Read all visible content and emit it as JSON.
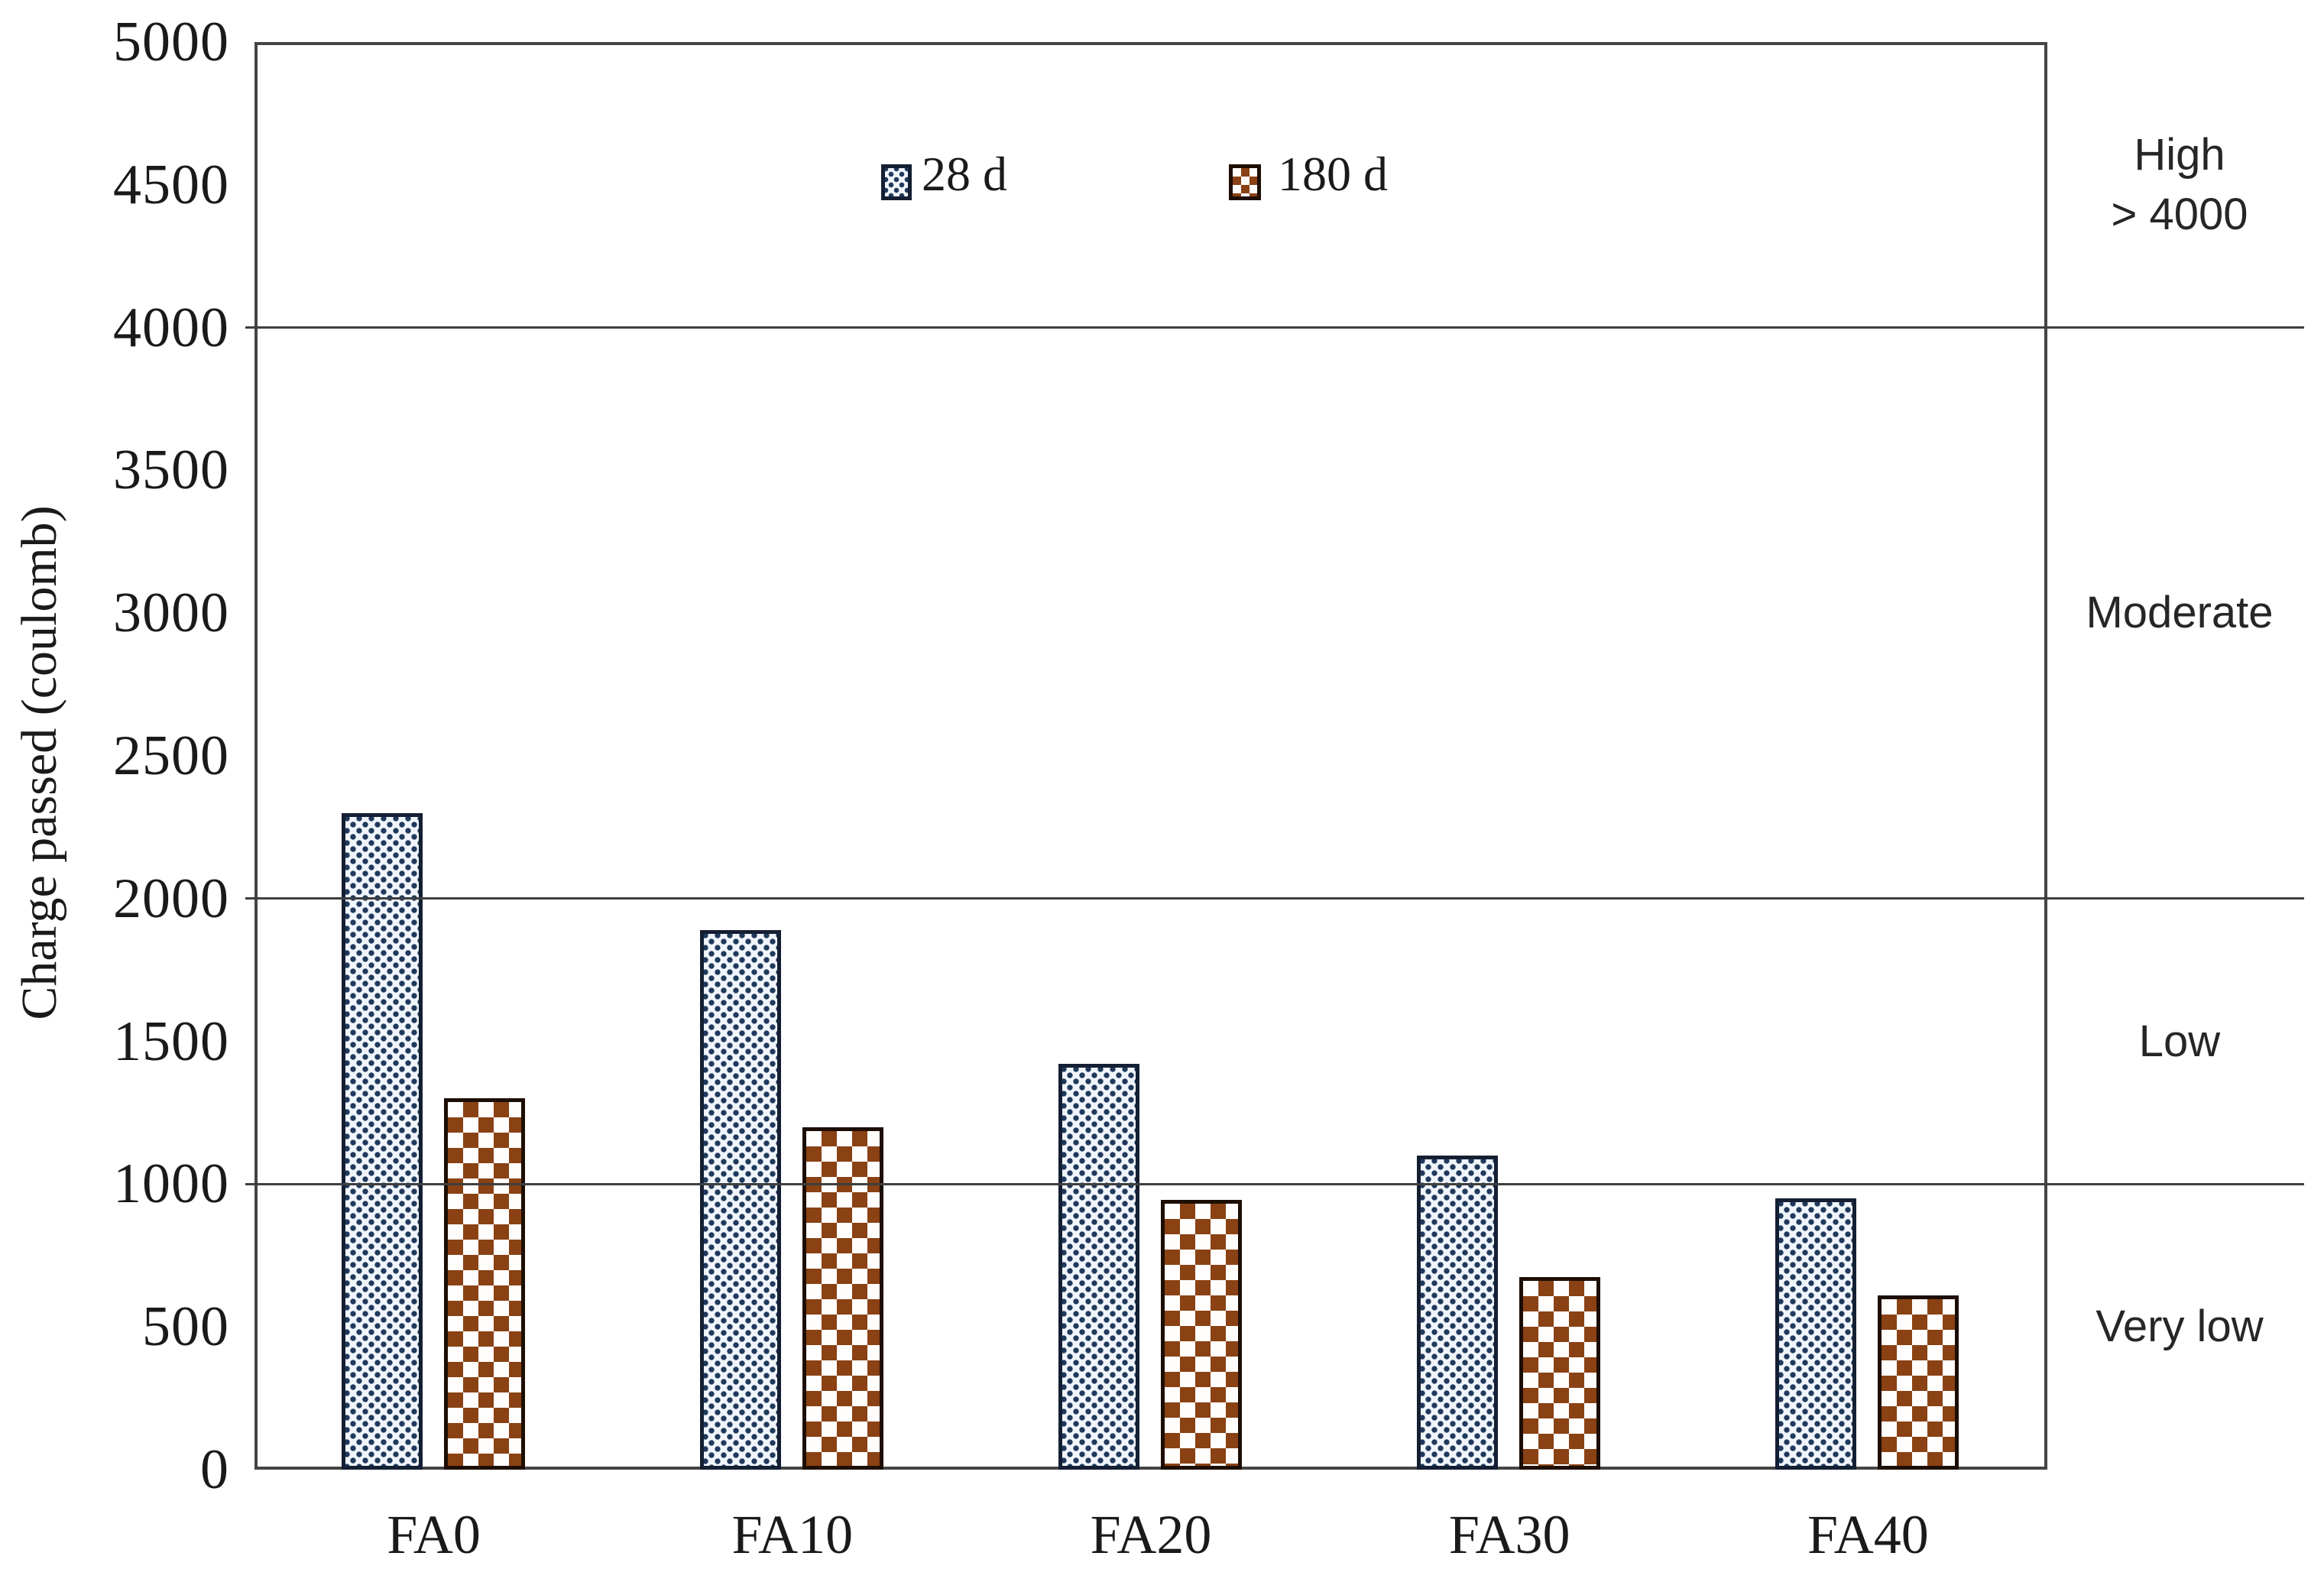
{
  "figure": {
    "background": "#ffffff"
  },
  "chart_data": {
    "type": "bar",
    "title": "",
    "xlabel": "",
    "ylabel": "Charge passed (coulomb)",
    "categories": [
      "FA0",
      "FA10",
      "FA20",
      "FA30",
      "FA40"
    ],
    "series": [
      {
        "name": "28 d",
        "pattern": "blue-stipple",
        "values": [
          2300,
          1890,
          1420,
          1100,
          950
        ]
      },
      {
        "name": "180 d",
        "pattern": "brown-checker",
        "values": [
          1300,
          1200,
          945,
          675,
          610
        ]
      }
    ],
    "ylim": [
      0,
      5000
    ],
    "ytick_step": 500,
    "yticks": [
      0,
      500,
      1000,
      1500,
      2000,
      2500,
      3000,
      3500,
      4000,
      4500,
      5000
    ],
    "gridlines": [
      1000,
      2000,
      4000
    ],
    "grid": "horizontal-partial",
    "legend_position": "top-center",
    "right_bands": [
      {
        "label": "High",
        "sublabel": "> 4000",
        "from": 4000,
        "to": 5000
      },
      {
        "label": "Moderate",
        "sublabel": "",
        "from": 2000,
        "to": 4000
      },
      {
        "label": "Low",
        "sublabel": "",
        "from": 1000,
        "to": 2000
      },
      {
        "label": "Very low",
        "sublabel": "",
        "from": 0,
        "to": 1000
      }
    ]
  },
  "colors": {
    "series1_dot": "#20395c",
    "series1_fill": "#f0f5fb",
    "series1_border": "#141f33",
    "series2_square": "#8a4113",
    "series2_fill": "#fffdfb",
    "series2_border": "#1d0e04",
    "axis": "#444444",
    "gridline": "#3f3f3f",
    "text": "#1a1a1a",
    "band_text": "#262626"
  }
}
